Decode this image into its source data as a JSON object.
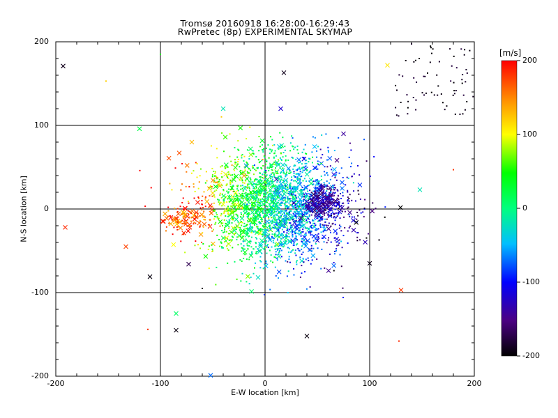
{
  "title_line1": "Tromsø 20160918 16:28:00-16:29:43",
  "title_line2": "RwPretec (8p) EXPERIMENTAL SKYMAP",
  "chart_data": {
    "type": "scatter",
    "xlabel": "E-W location [km]",
    "ylabel": "N-S location [km]",
    "xlim": [
      -200,
      200
    ],
    "ylim": [
      -200,
      200
    ],
    "xticks": [
      "-200",
      "-100",
      "0",
      "100",
      "200"
    ],
    "yticks": [
      "-200",
      "-100",
      "0",
      "100",
      "200"
    ],
    "grid": true,
    "grid_lines_km": [
      -100,
      0,
      100
    ],
    "colorbar": {
      "unit_label": "[m/s]",
      "range": [
        -200,
        200
      ],
      "ticks": [
        "200",
        "100",
        "0",
        "-100",
        "-200"
      ],
      "colormap": [
        "#000000",
        "#4b0082",
        "#0000ff",
        "#00bfff",
        "#00ff7f",
        "#00ff00",
        "#ffff00",
        "#ff8c00",
        "#ff0000"
      ]
    },
    "cluster": {
      "center": [
        10,
        5
      ],
      "spread_km": 35,
      "velocity_gradient": "negative eastward"
    },
    "markers": [
      {
        "x": -193,
        "y": 171,
        "v": -190,
        "m": "x"
      },
      {
        "x": -191,
        "y": -22,
        "v": 185,
        "m": "x"
      },
      {
        "x": -133,
        "y": -45,
        "v": 175,
        "m": "x"
      },
      {
        "x": -120,
        "y": 96,
        "v": 20,
        "m": "x"
      },
      {
        "x": -110,
        "y": -81,
        "v": -195,
        "m": "x"
      },
      {
        "x": -85,
        "y": -145,
        "v": -195,
        "m": "x"
      },
      {
        "x": -85,
        "y": -125,
        "v": 10,
        "m": "x"
      },
      {
        "x": -73,
        "y": -66,
        "v": -170,
        "m": "x"
      },
      {
        "x": -82,
        "y": 67,
        "v": 170,
        "m": "x"
      },
      {
        "x": -70,
        "y": 80,
        "v": 130,
        "m": "x"
      },
      {
        "x": -52,
        "y": -199,
        "v": -70,
        "m": "x"
      },
      {
        "x": -40,
        "y": 120,
        "v": -20,
        "m": "x"
      },
      {
        "x": -38,
        "y": 86,
        "v": 60,
        "m": "x"
      },
      {
        "x": -20,
        "y": 40,
        "v": 140,
        "m": "x"
      },
      {
        "x": -18,
        "y": 52,
        "v": -60,
        "m": "x"
      },
      {
        "x": 15,
        "y": 120,
        "v": -120,
        "m": "x"
      },
      {
        "x": 18,
        "y": 163,
        "v": -190,
        "m": "x"
      },
      {
        "x": 40,
        "y": -152,
        "v": -195,
        "m": "x"
      },
      {
        "x": 55,
        "y": 10,
        "v": -120,
        "m": "x"
      },
      {
        "x": 62,
        "y": -8,
        "v": -95,
        "m": "x"
      },
      {
        "x": 75,
        "y": 90,
        "v": -140,
        "m": "x"
      },
      {
        "x": 100,
        "y": -65,
        "v": -190,
        "m": "x"
      },
      {
        "x": 117,
        "y": 172,
        "v": 110,
        "m": "x"
      },
      {
        "x": 130,
        "y": -97,
        "v": 180,
        "m": "x"
      },
      {
        "x": 148,
        "y": 23,
        "v": -20,
        "m": "x"
      },
      {
        "x": 180,
        "y": 47,
        "v": 180,
        "m": "."
      },
      {
        "x": 128,
        "y": -158,
        "v": 185,
        "m": "."
      },
      {
        "x": -112,
        "y": -144,
        "v": 185,
        "m": "."
      },
      {
        "x": -152,
        "y": 153,
        "v": 120,
        "m": "."
      },
      {
        "x": -100,
        "y": 185,
        "v": 40,
        "m": "."
      },
      {
        "x": -60,
        "y": -95,
        "v": -190,
        "m": "."
      }
    ]
  }
}
